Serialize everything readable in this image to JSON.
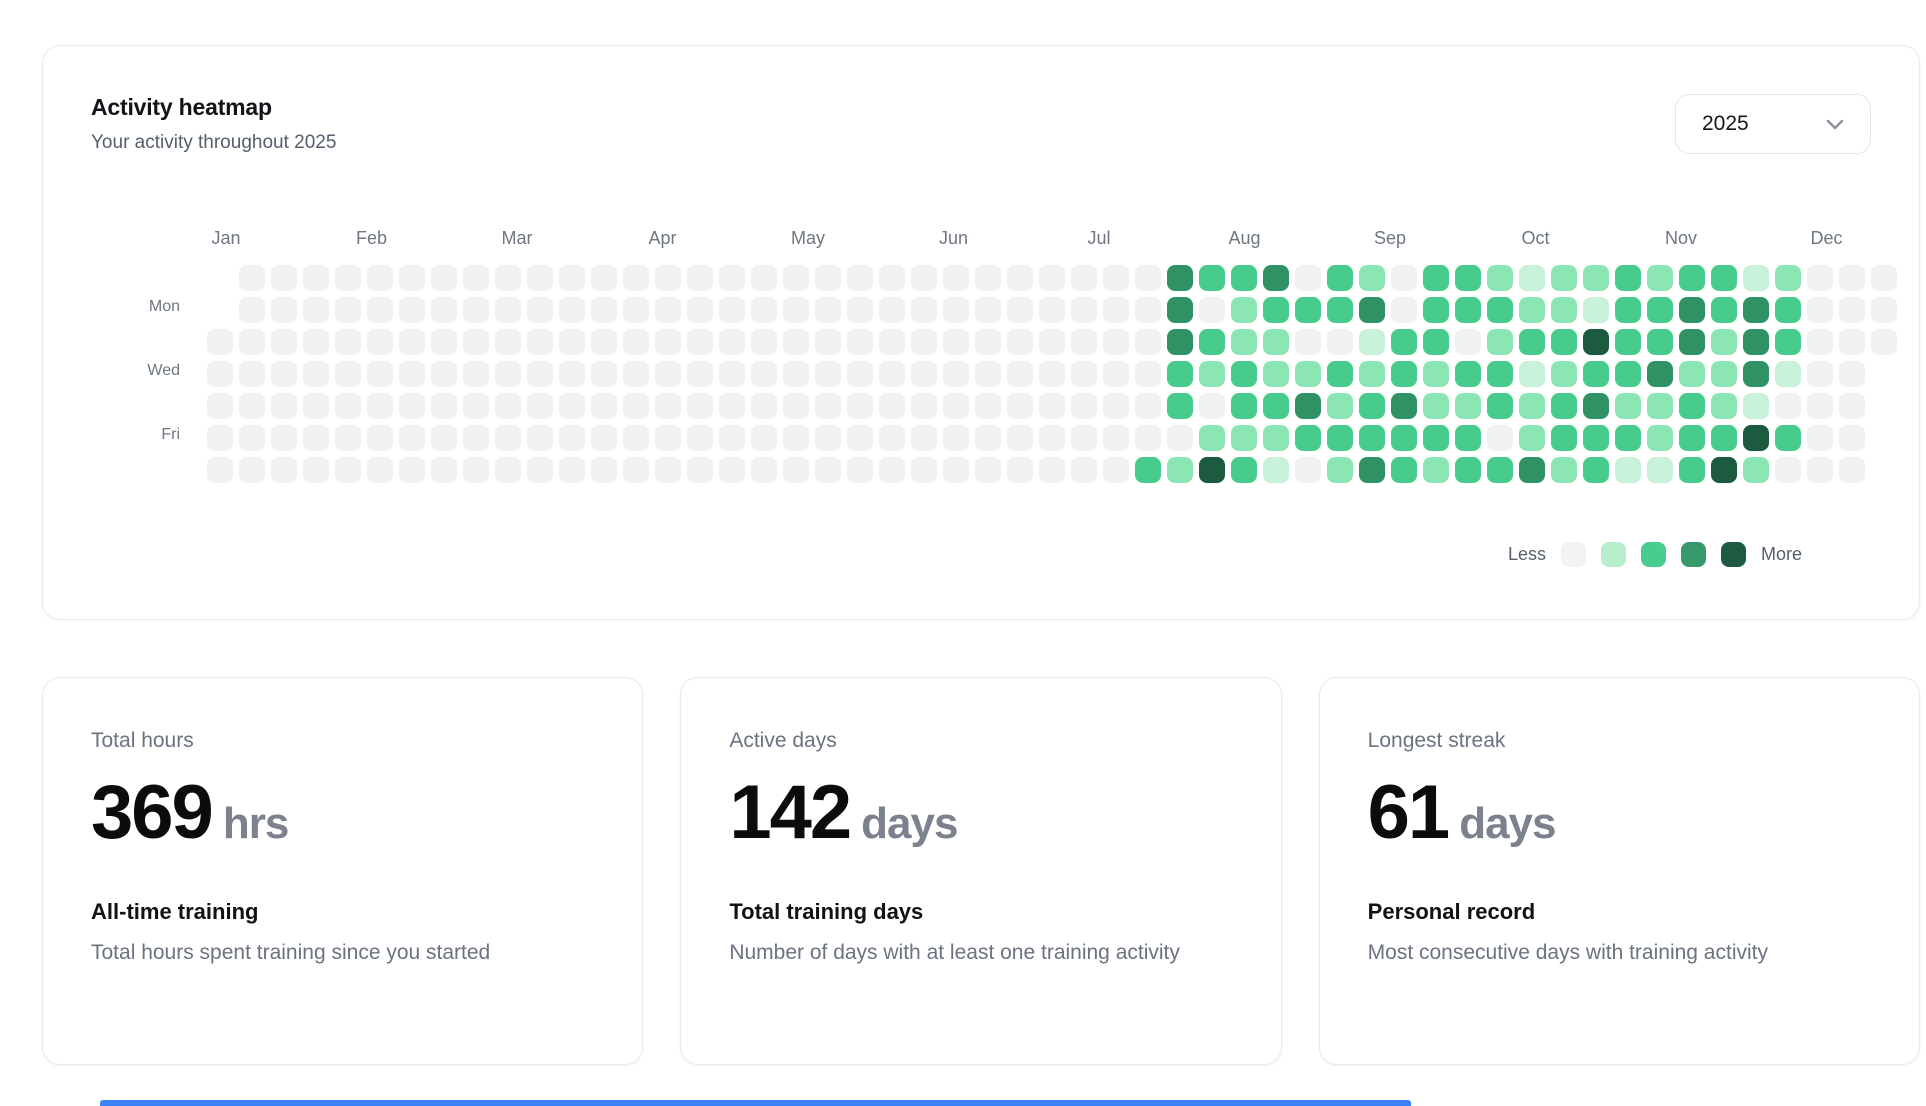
{
  "heatmap_card": {
    "title": "Activity heatmap",
    "subtitle": "Your activity throughout 2025",
    "year_select": {
      "value": "2025"
    },
    "months": [
      "Jan",
      "Feb",
      "Mar",
      "Apr",
      "May",
      "Jun",
      "Jul",
      "Aug",
      "Sep",
      "Oct",
      "Nov",
      "Dec"
    ],
    "day_labels": [
      {
        "label": "Mon",
        "row": 1
      },
      {
        "label": "Wed",
        "row": 3
      },
      {
        "label": "Fri",
        "row": 5
      }
    ],
    "palette": [
      "#f0f1f3",
      "#c8f2d9",
      "#8ce6b3",
      "#47cc8d",
      "#2f9366",
      "#1d5b40"
    ],
    "legend": {
      "less_label": "Less",
      "more_label": "More",
      "swatches": [
        "#f2f3f5",
        "#b9eecd",
        "#49cd8e",
        "#38996c",
        "#1d5b40"
      ]
    },
    "weeks": [
      [
        null,
        null,
        0,
        0,
        0,
        0,
        0
      ],
      [
        0,
        0,
        0,
        0,
        0,
        0,
        0
      ],
      [
        0,
        0,
        0,
        0,
        0,
        0,
        0
      ],
      [
        0,
        0,
        0,
        0,
        0,
        0,
        0
      ],
      [
        0,
        0,
        0,
        0,
        0,
        0,
        0
      ],
      [
        0,
        0,
        0,
        0,
        0,
        0,
        0
      ],
      [
        0,
        0,
        0,
        0,
        0,
        0,
        0
      ],
      [
        0,
        0,
        0,
        0,
        0,
        0,
        0
      ],
      [
        0,
        0,
        0,
        0,
        0,
        0,
        0
      ],
      [
        0,
        0,
        0,
        0,
        0,
        0,
        0
      ],
      [
        0,
        0,
        0,
        0,
        0,
        0,
        0
      ],
      [
        0,
        0,
        0,
        0,
        0,
        0,
        0
      ],
      [
        0,
        0,
        0,
        0,
        0,
        0,
        0
      ],
      [
        0,
        0,
        0,
        0,
        0,
        0,
        0
      ],
      [
        0,
        0,
        0,
        0,
        0,
        0,
        0
      ],
      [
        0,
        0,
        0,
        0,
        0,
        0,
        0
      ],
      [
        0,
        0,
        0,
        0,
        0,
        0,
        0
      ],
      [
        0,
        0,
        0,
        0,
        0,
        0,
        0
      ],
      [
        0,
        0,
        0,
        0,
        0,
        0,
        0
      ],
      [
        0,
        0,
        0,
        0,
        0,
        0,
        0
      ],
      [
        0,
        0,
        0,
        0,
        0,
        0,
        0
      ],
      [
        0,
        0,
        0,
        0,
        0,
        0,
        0
      ],
      [
        0,
        0,
        0,
        0,
        0,
        0,
        0
      ],
      [
        0,
        0,
        0,
        0,
        0,
        0,
        0
      ],
      [
        0,
        0,
        0,
        0,
        0,
        0,
        0
      ],
      [
        0,
        0,
        0,
        0,
        0,
        0,
        0
      ],
      [
        0,
        0,
        0,
        0,
        0,
        0,
        0
      ],
      [
        0,
        0,
        0,
        0,
        0,
        0,
        0
      ],
      [
        0,
        0,
        0,
        0,
        0,
        0,
        0
      ],
      [
        0,
        0,
        0,
        0,
        0,
        0,
        3
      ],
      [
        4,
        4,
        4,
        3,
        3,
        0,
        2
      ],
      [
        3,
        0,
        3,
        2,
        0,
        2,
        5
      ],
      [
        3,
        2,
        2,
        3,
        3,
        2,
        3
      ],
      [
        4,
        3,
        2,
        2,
        3,
        2,
        1
      ],
      [
        0,
        3,
        0,
        2,
        4,
        3,
        0
      ],
      [
        3,
        3,
        0,
        3,
        2,
        3,
        2
      ],
      [
        2,
        4,
        1,
        2,
        3,
        3,
        4
      ],
      [
        0,
        0,
        3,
        3,
        4,
        3,
        3
      ],
      [
        3,
        3,
        3,
        2,
        2,
        3,
        2
      ],
      [
        3,
        3,
        0,
        3,
        2,
        3,
        3
      ],
      [
        2,
        3,
        2,
        3,
        3,
        0,
        3
      ],
      [
        1,
        2,
        3,
        1,
        2,
        2,
        4
      ],
      [
        2,
        2,
        3,
        2,
        3,
        3,
        2
      ],
      [
        2,
        1,
        5,
        3,
        4,
        3,
        3
      ],
      [
        3,
        3,
        3,
        3,
        2,
        3,
        1
      ],
      [
        2,
        3,
        3,
        4,
        2,
        2,
        1
      ],
      [
        3,
        4,
        4,
        2,
        3,
        3,
        3
      ],
      [
        3,
        3,
        2,
        2,
        2,
        3,
        5
      ],
      [
        1,
        4,
        4,
        4,
        1,
        5,
        2
      ],
      [
        2,
        3,
        3,
        1,
        0,
        3,
        0
      ],
      [
        0,
        0,
        0,
        0,
        0,
        0,
        0
      ],
      [
        0,
        0,
        0,
        0,
        0,
        0,
        0
      ],
      [
        0,
        0,
        0,
        null,
        null,
        null,
        null
      ]
    ]
  },
  "chart_data": {
    "type": "heatmap",
    "title": "Activity heatmap",
    "x": "weeks of 2025 (53 columns, Jan-Dec)",
    "y": "day of week (7 rows, labels Mon/Wed/Fri on rows 1/3/5)",
    "levels": "0=none, 1-5 increasing activity; values stored in heatmap_card.weeks"
  },
  "stats": [
    {
      "label": "Total hours",
      "value": "369",
      "unit": "hrs",
      "heading": "All-time training",
      "description": "Total hours spent training since you started"
    },
    {
      "label": "Active days",
      "value": "142",
      "unit": "days",
      "heading": "Total training days",
      "description": "Number of days with at least one training activity"
    },
    {
      "label": "Longest streak",
      "value": "61",
      "unit": "days",
      "heading": "Personal record",
      "description": "Most consecutive days with training activity"
    }
  ]
}
